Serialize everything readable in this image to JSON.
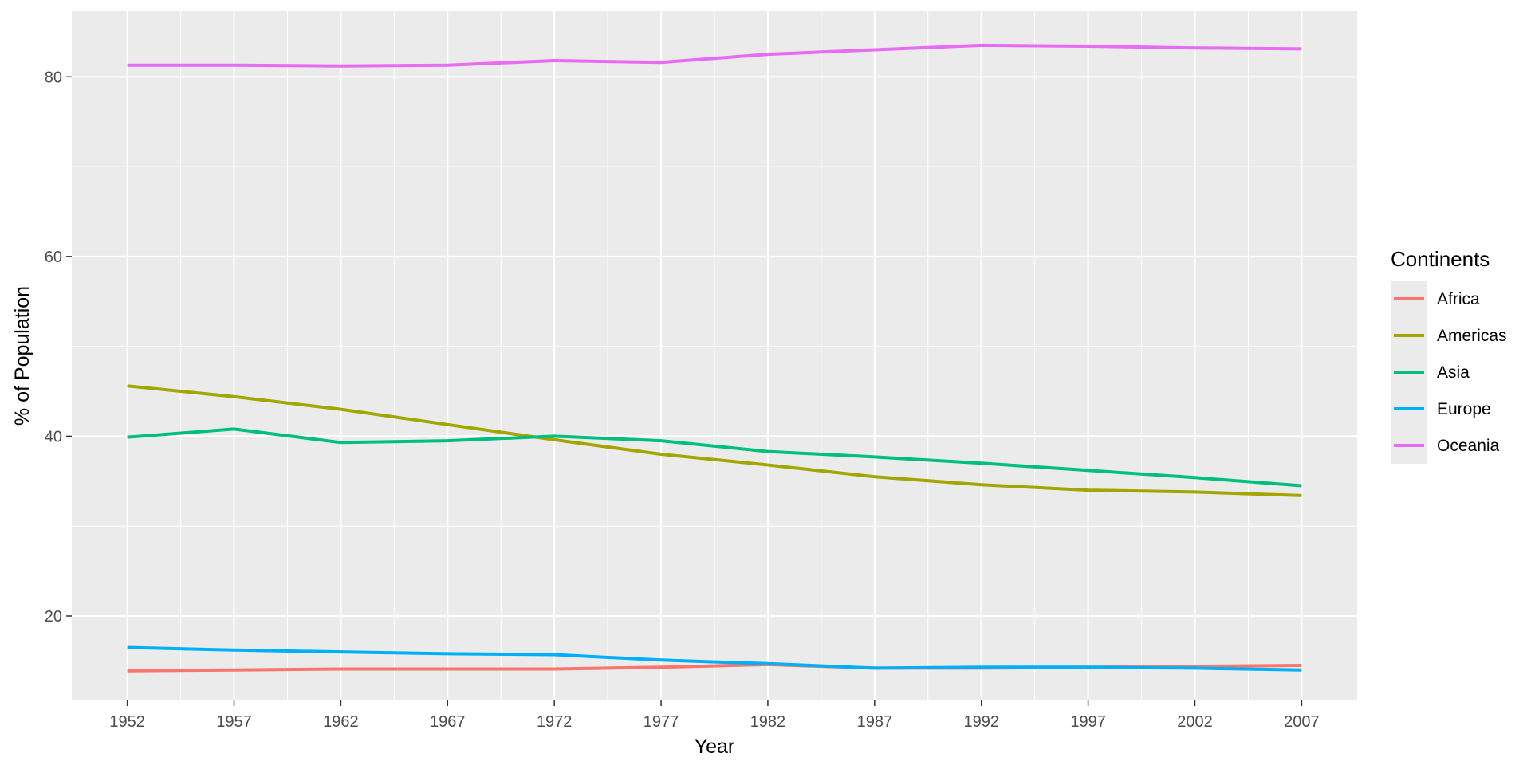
{
  "chart_data": {
    "type": "line",
    "title": "",
    "xlabel": "Year",
    "ylabel": "% of Population",
    "x": [
      1952,
      1957,
      1962,
      1967,
      1972,
      1977,
      1982,
      1987,
      1992,
      1997,
      2002,
      2007
    ],
    "x_ticks": [
      "1952",
      "1957",
      "1962",
      "1967",
      "1972",
      "1977",
      "1982",
      "1987",
      "1992",
      "1997",
      "2002",
      "2007"
    ],
    "y_ticks": [
      20,
      40,
      60,
      80
    ],
    "y_tick_labels": [
      "20",
      "40",
      "60",
      "80"
    ],
    "xlim": [
      1949.4,
      2009.6
    ],
    "ylim": [
      10.6,
      87.3
    ],
    "grid": true,
    "legend": {
      "title": "Continents",
      "placement": "right"
    },
    "series": [
      {
        "name": "Africa",
        "color": "#F8766D",
        "values": [
          13.9,
          14.0,
          14.1,
          14.1,
          14.1,
          14.3,
          14.6,
          14.2,
          14.2,
          14.3,
          14.4,
          14.5
        ]
      },
      {
        "name": "Americas",
        "color": "#A3A500",
        "values": [
          45.6,
          44.4,
          43.0,
          41.3,
          39.6,
          38.0,
          36.8,
          35.5,
          34.6,
          34.0,
          33.8,
          33.4
        ]
      },
      {
        "name": "Asia",
        "color": "#00BF7D",
        "values": [
          39.9,
          40.8,
          39.3,
          39.5,
          40.0,
          39.5,
          38.3,
          37.7,
          37.0,
          36.2,
          35.4,
          34.5
        ]
      },
      {
        "name": "Europe",
        "color": "#00B0F6",
        "values": [
          16.5,
          16.2,
          16.0,
          15.8,
          15.7,
          15.1,
          14.7,
          14.2,
          14.3,
          14.3,
          14.2,
          14.0
        ]
      },
      {
        "name": "Oceania",
        "color": "#E76BF3",
        "values": [
          81.3,
          81.3,
          81.2,
          81.3,
          81.8,
          81.6,
          82.5,
          83.0,
          83.5,
          83.4,
          83.2,
          83.1
        ]
      }
    ]
  }
}
